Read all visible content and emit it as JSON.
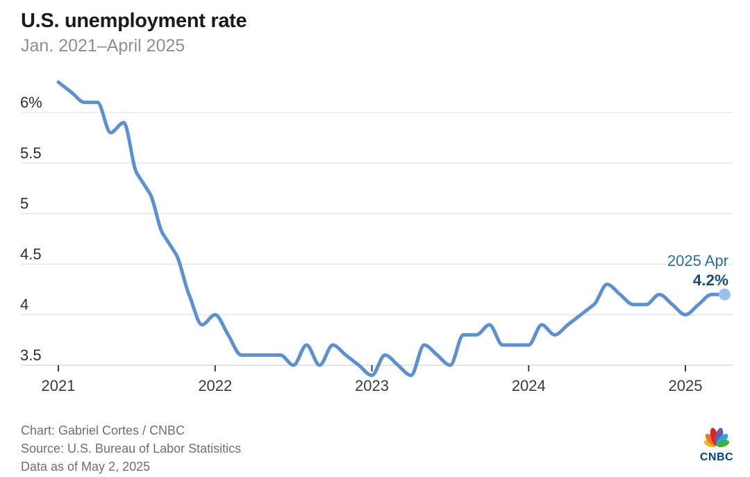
{
  "header": {
    "title": "U.S. unemployment rate",
    "subtitle": "Jan. 2021–April 2025"
  },
  "chart_data": {
    "type": "line",
    "title": "U.S. unemployment rate",
    "subtitle": "Jan. 2021–April 2025",
    "x_unit": "month",
    "x_range": [
      "2021-01",
      "2025-04"
    ],
    "x_tick_labels": [
      "2021",
      "2022",
      "2023",
      "2024",
      "2025"
    ],
    "y_axis": {
      "ticks": [
        6,
        5.5,
        5,
        4.5,
        4,
        3.5
      ],
      "tick_labels": [
        "6%",
        "5.5",
        "5",
        "4.5",
        "4",
        "3.5"
      ],
      "ylim": [
        3.3,
        6.45
      ]
    },
    "grid": "horizontal",
    "legend": "none",
    "series": [
      {
        "name": "U.S. unemployment rate",
        "start": "2021-01",
        "values": [
          6.3,
          6.2,
          6.1,
          6.1,
          5.8,
          5.9,
          5.4,
          5.2,
          4.8,
          4.6,
          4.2,
          3.9,
          4.0,
          3.8,
          3.6,
          3.6,
          3.6,
          3.6,
          3.5,
          3.7,
          3.5,
          3.7,
          3.6,
          3.5,
          3.4,
          3.6,
          3.5,
          3.4,
          3.7,
          3.6,
          3.5,
          3.8,
          3.8,
          3.9,
          3.7,
          3.7,
          3.7,
          3.9,
          3.8,
          3.9,
          4.0,
          4.1,
          4.3,
          4.2,
          4.1,
          4.1,
          4.2,
          4.1,
          4.0,
          4.1,
          4.2,
          4.2
        ]
      }
    ],
    "end_label": {
      "line1": "2025 Apr",
      "line2": "4.2%",
      "label_color": "#2a6ba8",
      "value_color": "#1b4a7e",
      "marker_color": "#9cc0ea"
    },
    "colors": {
      "line": "#5b91d2",
      "grid": "#dcdcdc",
      "axis": "#c9c9c9",
      "tick": "#3a3a3a",
      "axis_label": "#3a3a3a",
      "y_label": "#2d2d2d"
    }
  },
  "footer": {
    "lines": [
      "Chart: Gabriel Cortes / CNBC",
      "Source: U.S. Bureau of Labor Statisitics",
      "Data as of May 2, 2025"
    ]
  },
  "logo": {
    "wordmark": "CNBC",
    "wordmark_color": "#00427c",
    "feather_colors": [
      "#f4b223",
      "#f4731f",
      "#e2231a",
      "#6a5ca5",
      "#23a9e1",
      "#42b035"
    ]
  }
}
